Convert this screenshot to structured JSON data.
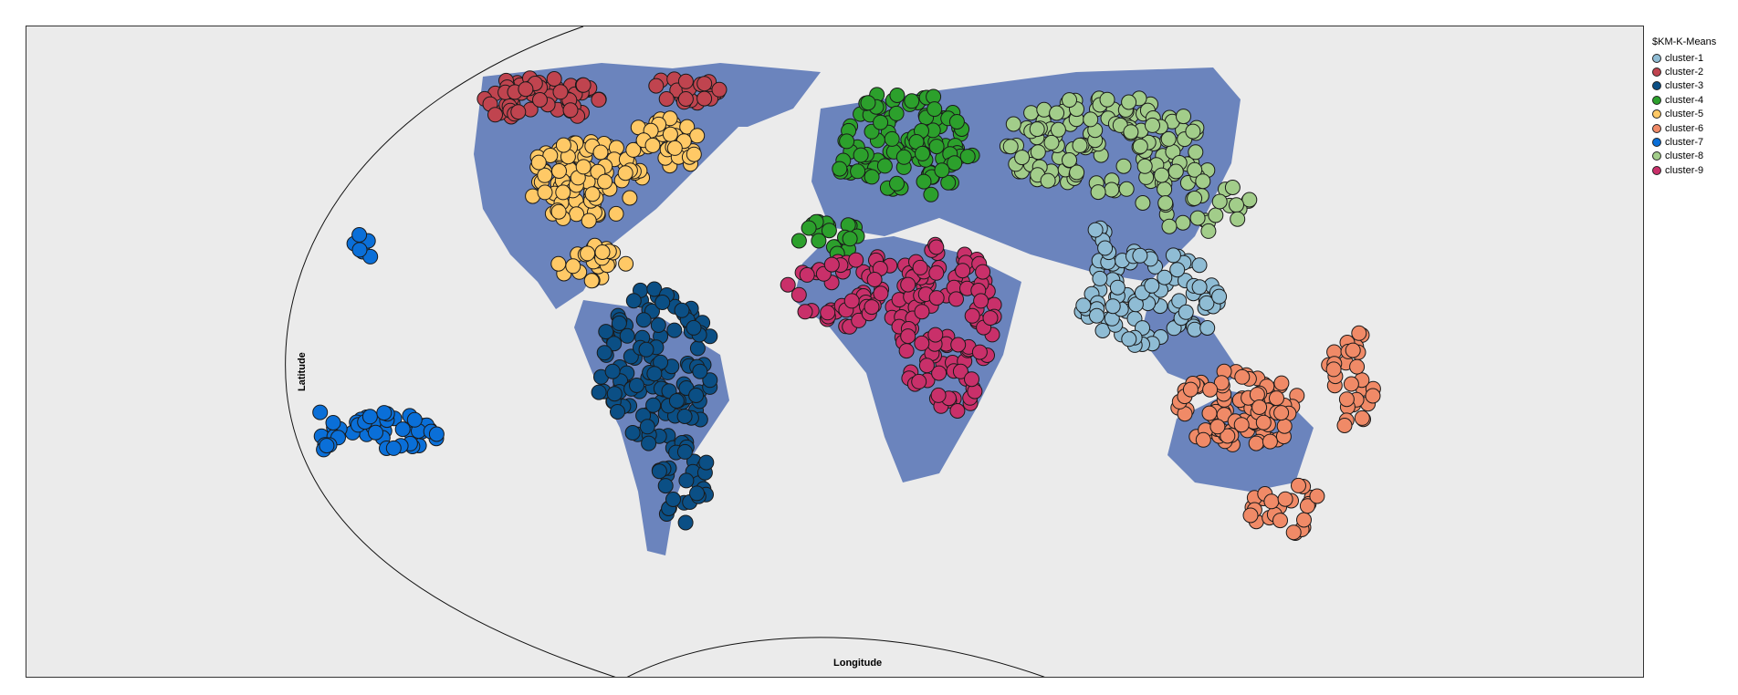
{
  "legend": {
    "title": "$KM-K-Means",
    "items": [
      {
        "label": "cluster-1",
        "color": "#8fbcd4"
      },
      {
        "label": "cluster-2",
        "color": "#c0444f"
      },
      {
        "label": "cluster-3",
        "color": "#0b4f85"
      },
      {
        "label": "cluster-4",
        "color": "#2ca02c"
      },
      {
        "label": "cluster-5",
        "color": "#ffc966"
      },
      {
        "label": "cluster-6",
        "color": "#f08a67"
      },
      {
        "label": "cluster-7",
        "color": "#0a6fd8"
      },
      {
        "label": "cluster-8",
        "color": "#a2cd8a"
      },
      {
        "label": "cluster-9",
        "color": "#c9306a"
      }
    ]
  },
  "axes": {
    "x_label": "Longitude",
    "y_label": "Latitude"
  },
  "colors": {
    "background": "#ebebeb",
    "land": "#6b84bd",
    "frame": "#333333",
    "marker_stroke": "#1a1a1a"
  }
}
